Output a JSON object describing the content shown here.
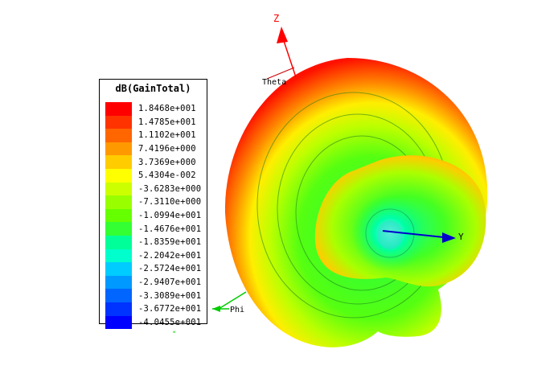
{
  "legend": {
    "title": "dB(GainTotal)",
    "entries": [
      {
        "label": "1.8468e+001",
        "color": "#ff0000"
      },
      {
        "label": "1.4785e+001",
        "color": "#ff3300"
      },
      {
        "label": "1.1102e+001",
        "color": "#ff6600"
      },
      {
        "label": "7.4196e+000",
        "color": "#ff9900"
      },
      {
        "label": "3.7369e+000",
        "color": "#ffcc00"
      },
      {
        "label": "5.4304e-002",
        "color": "#ffff00"
      },
      {
        "label": "-3.6283e+000",
        "color": "#ccff00"
      },
      {
        "label": "-7.3110e+000",
        "color": "#99ff00"
      },
      {
        "label": "-1.0994e+001",
        "color": "#66ff00"
      },
      {
        "label": "-1.4676e+001",
        "color": "#33ff33"
      },
      {
        "label": "-1.8359e+001",
        "color": "#00ff99"
      },
      {
        "label": "-2.2042e+001",
        "color": "#00ffcc"
      },
      {
        "label": "-2.5724e+001",
        "color": "#00ccff"
      },
      {
        "label": "-2.9407e+001",
        "color": "#0099ff"
      },
      {
        "label": "-3.3089e+001",
        "color": "#0066ff"
      },
      {
        "label": "-3.6772e+001",
        "color": "#0033ff"
      },
      {
        "label": "-4.0455e+001",
        "color": "#0000ff"
      }
    ]
  },
  "axes": {
    "z_label": "Z",
    "y_label": "Y",
    "phi_label": "Phi",
    "theta_label": "Theta",
    "z_color": "#ff0000",
    "y_color": "#0000cc",
    "phi_color": "#00cc00",
    "theta_color": "#cc0000"
  },
  "marks": {
    "bottom_mark": "\""
  }
}
